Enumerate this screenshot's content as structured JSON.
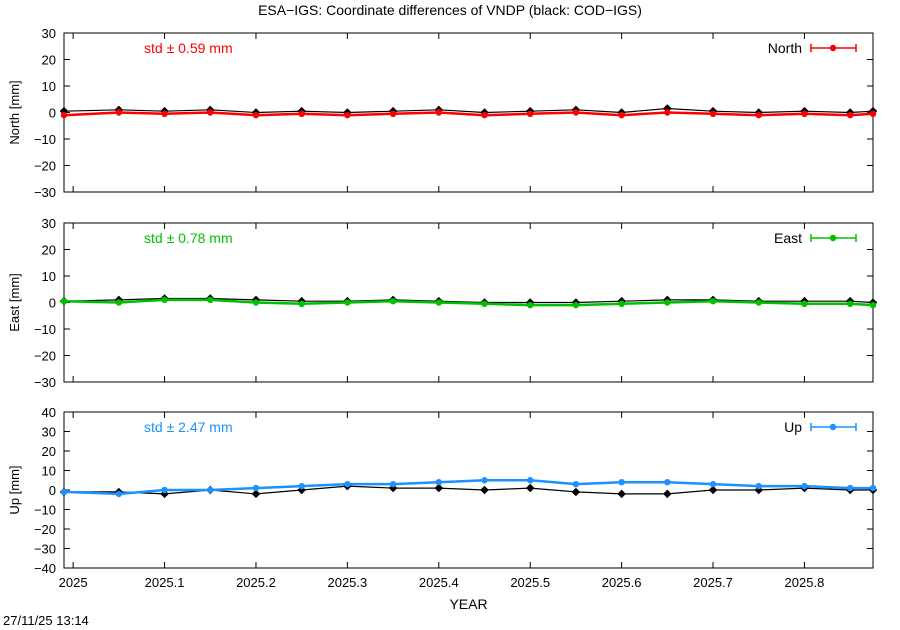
{
  "title": "ESA−IGS: Coordinate differences of VNDP (black: COD−IGS)",
  "timestamp": "27/11/25 13:14",
  "xlabel": "YEAR",
  "xlim": [
    2024.99,
    2025.875
  ],
  "xticks": [
    2025,
    2025.1,
    2025.2,
    2025.3,
    2025.4,
    2025.5,
    2025.6,
    2025.7,
    2025.8
  ],
  "xticklabels": [
    "2025",
    "2025.1",
    "2025.2",
    "2025.3",
    "2025.4",
    "2025.5",
    "2025.6",
    "2025.7",
    "2025.8"
  ],
  "chart_data": [
    {
      "type": "line",
      "panel": "north",
      "ylabel": "North [mm]",
      "ylim": [
        -30,
        30
      ],
      "yticks": [
        30,
        20,
        10,
        0,
        -10,
        -20,
        -30
      ],
      "yticklabels": [
        "30",
        "20",
        "10",
        "0",
        "−10",
        "−20",
        "−30"
      ],
      "std_label": "std ± 0.59 mm",
      "legend": "North",
      "legend_position": "top-right",
      "series": [
        {
          "name": "North",
          "color": "#ff0000",
          "x": [
            2024.99,
            2025.05,
            2025.1,
            2025.15,
            2025.2,
            2025.25,
            2025.3,
            2025.35,
            2025.4,
            2025.45,
            2025.5,
            2025.55,
            2025.6,
            2025.65,
            2025.7,
            2025.75,
            2025.8,
            2025.85,
            2025.875
          ],
          "y": [
            -1,
            0,
            -0.5,
            0,
            -1,
            -0.5,
            -1,
            -0.5,
            0,
            -1,
            -0.5,
            0,
            -1,
            0,
            -0.5,
            -1,
            -0.5,
            -1,
            -0.5
          ]
        },
        {
          "color": "#000000",
          "x": [
            2024.99,
            2025.05,
            2025.1,
            2025.15,
            2025.2,
            2025.25,
            2025.3,
            2025.35,
            2025.4,
            2025.45,
            2025.5,
            2025.55,
            2025.6,
            2025.65,
            2025.7,
            2025.75,
            2025.8,
            2025.85,
            2025.875
          ],
          "y": [
            0.5,
            1,
            0.5,
            1,
            0,
            0.5,
            0,
            0.5,
            1,
            0,
            0.5,
            1,
            0,
            1.5,
            0.5,
            0,
            0.5,
            0,
            0.5
          ]
        }
      ]
    },
    {
      "type": "line",
      "panel": "east",
      "ylabel": "East [mm]",
      "ylim": [
        -30,
        30
      ],
      "yticks": [
        30,
        20,
        10,
        0,
        -10,
        -20,
        -30
      ],
      "yticklabels": [
        "30",
        "20",
        "10",
        "0",
        "−10",
        "−20",
        "−30"
      ],
      "std_label": "std ± 0.78 mm",
      "legend": "East",
      "legend_position": "top-right",
      "series": [
        {
          "name": "East",
          "color": "#00c000",
          "x": [
            2024.99,
            2025.05,
            2025.1,
            2025.15,
            2025.2,
            2025.25,
            2025.3,
            2025.35,
            2025.4,
            2025.45,
            2025.5,
            2025.55,
            2025.6,
            2025.65,
            2025.7,
            2025.75,
            2025.8,
            2025.85,
            2025.875
          ],
          "y": [
            0.5,
            0,
            1,
            1,
            0,
            -0.5,
            0,
            0.5,
            0,
            -0.5,
            -1,
            -1,
            -0.5,
            0,
            0.5,
            0,
            -0.5,
            -0.5,
            -1
          ]
        },
        {
          "color": "#000000",
          "x": [
            2024.99,
            2025.05,
            2025.1,
            2025.15,
            2025.2,
            2025.25,
            2025.3,
            2025.35,
            2025.4,
            2025.45,
            2025.5,
            2025.55,
            2025.6,
            2025.65,
            2025.7,
            2025.75,
            2025.8,
            2025.85,
            2025.875
          ],
          "y": [
            0.5,
            1,
            1.5,
            1.5,
            1,
            0.5,
            0.5,
            1,
            0.5,
            0,
            0,
            0,
            0.5,
            1,
            1,
            0.5,
            0.5,
            0.5,
            0
          ]
        }
      ]
    },
    {
      "type": "line",
      "panel": "up",
      "ylabel": "Up [mm]",
      "ylim": [
        -40,
        40
      ],
      "yticks": [
        40,
        30,
        20,
        10,
        0,
        -10,
        -20,
        -30,
        -40
      ],
      "yticklabels": [
        "40",
        "30",
        "20",
        "10",
        "0",
        "−10",
        "−20",
        "−30",
        "−40"
      ],
      "std_label": "std ± 2.47 mm",
      "legend": "Up",
      "legend_position": "top-right",
      "series": [
        {
          "name": "Up",
          "color": "#1e90ff",
          "x": [
            2024.99,
            2025.05,
            2025.1,
            2025.15,
            2025.2,
            2025.25,
            2025.3,
            2025.35,
            2025.4,
            2025.45,
            2025.5,
            2025.55,
            2025.6,
            2025.65,
            2025.7,
            2025.75,
            2025.8,
            2025.85,
            2025.875
          ],
          "y": [
            -1,
            -2,
            0,
            0,
            1,
            2,
            3,
            3,
            4,
            5,
            5,
            3,
            4,
            4,
            3,
            2,
            2,
            1,
            1
          ]
        },
        {
          "color": "#000000",
          "x": [
            2024.99,
            2025.05,
            2025.1,
            2025.15,
            2025.2,
            2025.25,
            2025.3,
            2025.35,
            2025.4,
            2025.45,
            2025.5,
            2025.55,
            2025.6,
            2025.65,
            2025.7,
            2025.75,
            2025.8,
            2025.85,
            2025.875
          ],
          "y": [
            -1,
            -1,
            -2,
            0,
            -2,
            0,
            2,
            1,
            1,
            0,
            1,
            -1,
            -2,
            -2,
            0,
            0,
            1,
            0,
            0
          ]
        }
      ]
    }
  ]
}
